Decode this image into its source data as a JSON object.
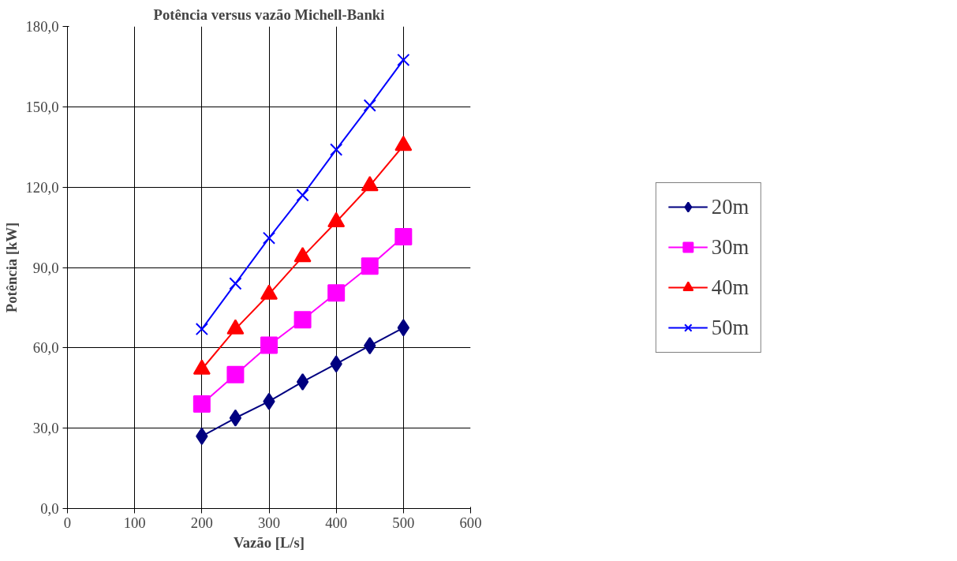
{
  "chart_data": {
    "type": "line",
    "title": "Potência versus vazão Michell-Banki",
    "xlabel": "Vazão [L/s]",
    "ylabel": "Potência [kW]",
    "x": [
      200,
      250,
      300,
      350,
      400,
      450,
      500
    ],
    "series": [
      {
        "name": "20m",
        "color": "#000080",
        "marker": "diamond",
        "values": [
          27,
          33.8,
          40,
          47.3,
          54,
          60.8,
          67.5
        ]
      },
      {
        "name": "30m",
        "color": "#ff00ff",
        "marker": "square",
        "values": [
          39,
          50,
          61,
          70.5,
          80.5,
          90.5,
          101.5
        ]
      },
      {
        "name": "40m",
        "color": "#ff0000",
        "marker": "triangle",
        "values": [
          52,
          67,
          80,
          94,
          107,
          120.5,
          135.5
        ]
      },
      {
        "name": "50m",
        "color": "#0000ff",
        "marker": "cross",
        "values": [
          67,
          84,
          101,
          117,
          134,
          150.5,
          167.5
        ]
      }
    ],
    "xlim": [
      0,
      600
    ],
    "xticks": [
      0,
      100,
      200,
      300,
      400,
      500,
      600
    ],
    "ylim": [
      0,
      180
    ],
    "yticks": [
      {
        "value": 0,
        "label": "0,0"
      },
      {
        "value": 30,
        "label": "30,0"
      },
      {
        "value": 60,
        "label": "60,0"
      },
      {
        "value": 90,
        "label": "90,0"
      },
      {
        "value": 120,
        "label": "120,0"
      },
      {
        "value": 150,
        "label": "150,0"
      },
      {
        "value": 180,
        "label": "180,0"
      }
    ],
    "grid": true,
    "legend": "right",
    "line_style": "solid"
  }
}
